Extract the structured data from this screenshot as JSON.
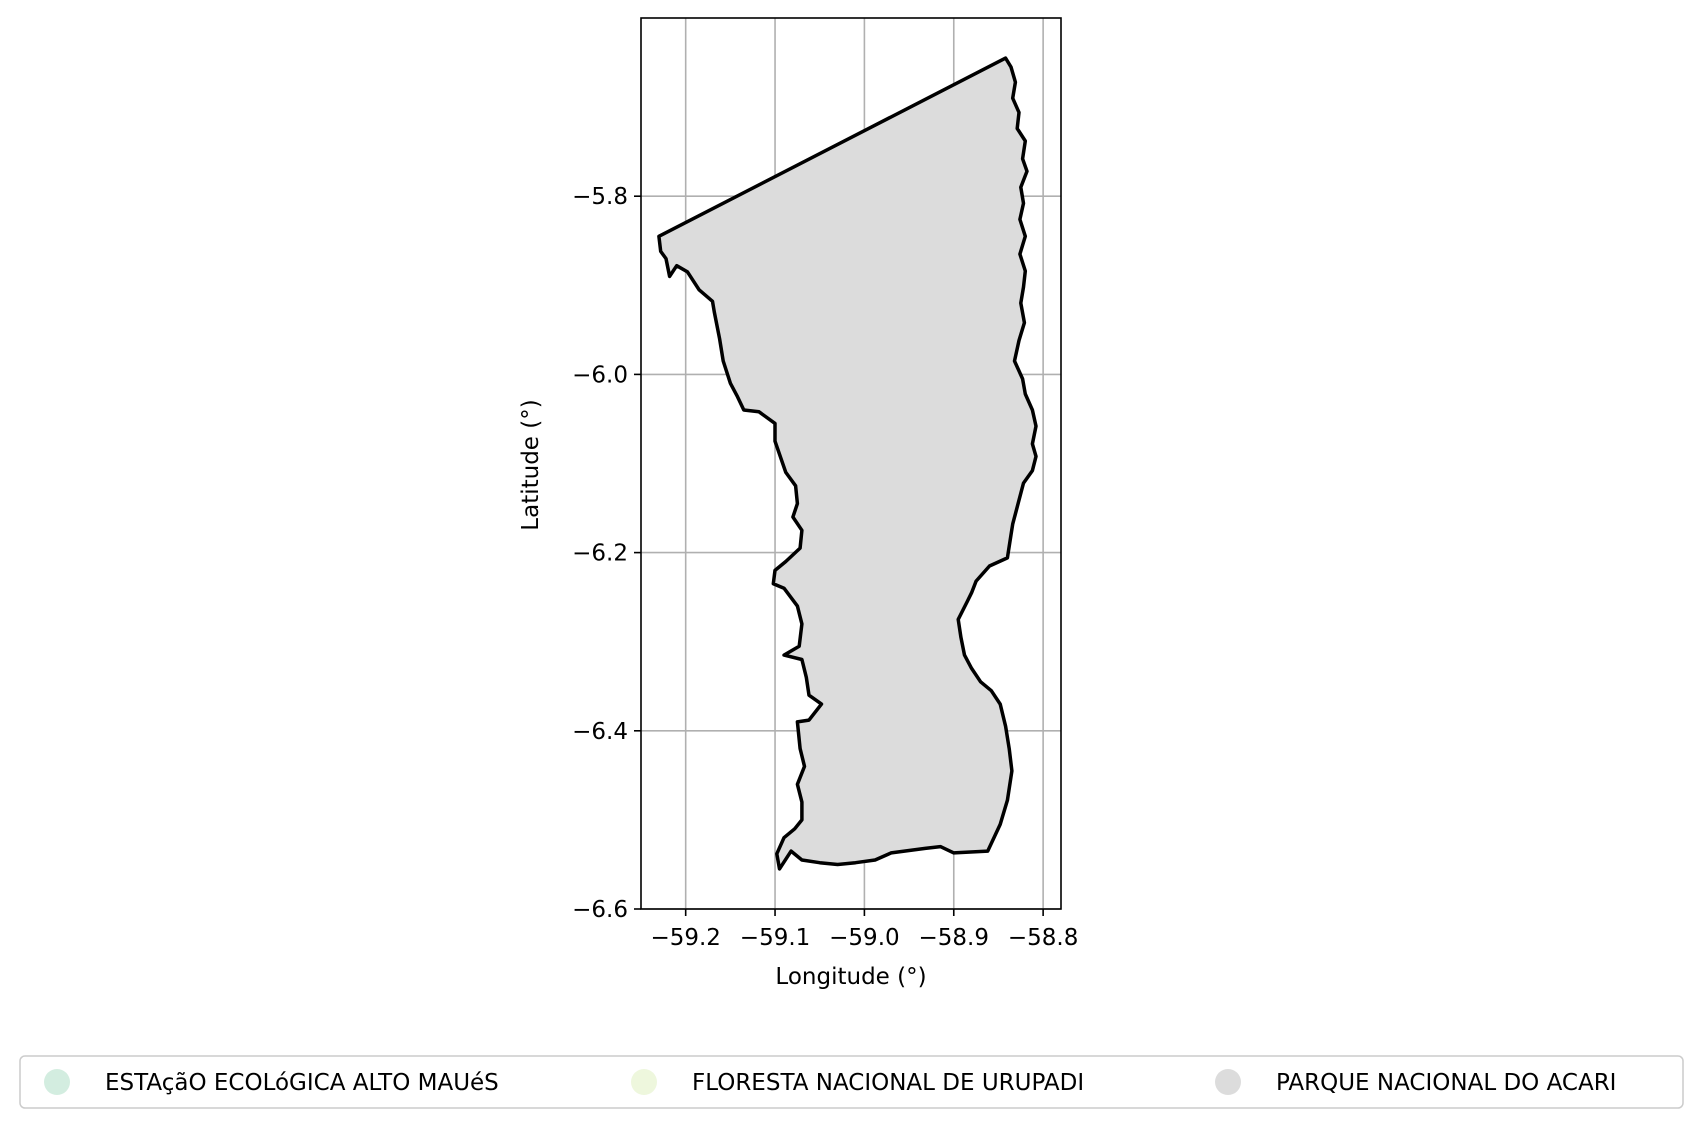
{
  "chart_data": {
    "type": "map",
    "xlabel": "Longitude (°)",
    "ylabel": "Latitude (°)",
    "xlim": [
      -59.25,
      -58.78
    ],
    "ylim": [
      -6.6,
      -5.6
    ],
    "xticks": [
      -59.2,
      -59.1,
      -59.0,
      -58.9,
      -58.8
    ],
    "xtick_labels": [
      "−59.2",
      "−59.1",
      "−59.0",
      "−58.9",
      "−58.8"
    ],
    "yticks": [
      -5.8,
      -6.0,
      -6.2,
      -6.4,
      -6.6
    ],
    "ytick_labels": [
      "−5.8",
      "−6.0",
      "−6.2",
      "−6.4",
      "−6.6"
    ],
    "grid": true,
    "legend_position": "bottom",
    "legend": [
      {
        "label": "ESTAçãO ECOLóGICA ALTO MAUéS",
        "color": "#d3ede0"
      },
      {
        "label": "FLORESTA NACIONAL DE URUPADI",
        "color": "#eef7dd"
      },
      {
        "label": "PARQUE NACIONAL DO ACARI",
        "color": "#dcdcdc"
      }
    ],
    "features": [
      {
        "name": "PARQUE NACIONAL DO ACARI",
        "fill": "#dcdcdc",
        "stroke": "#000000",
        "coordinates": [
          [
            -59.23,
            -5.845
          ],
          [
            -58.842,
            -5.645
          ],
          [
            -58.836,
            -5.655
          ],
          [
            -58.831,
            -5.672
          ],
          [
            -58.834,
            -5.69
          ],
          [
            -58.827,
            -5.706
          ],
          [
            -58.829,
            -5.724
          ],
          [
            -58.82,
            -5.738
          ],
          [
            -58.823,
            -5.758
          ],
          [
            -58.818,
            -5.772
          ],
          [
            -58.825,
            -5.79
          ],
          [
            -58.822,
            -5.808
          ],
          [
            -58.826,
            -5.826
          ],
          [
            -58.82,
            -5.845
          ],
          [
            -58.826,
            -5.865
          ],
          [
            -58.82,
            -5.884
          ],
          [
            -58.822,
            -5.902
          ],
          [
            -58.825,
            -5.92
          ],
          [
            -58.821,
            -5.942
          ],
          [
            -58.827,
            -5.962
          ],
          [
            -58.832,
            -5.985
          ],
          [
            -58.823,
            -6.005
          ],
          [
            -58.82,
            -6.022
          ],
          [
            -58.812,
            -6.04
          ],
          [
            -58.808,
            -6.058
          ],
          [
            -58.812,
            -6.078
          ],
          [
            -58.808,
            -6.092
          ],
          [
            -58.812,
            -6.108
          ],
          [
            -58.822,
            -6.122
          ],
          [
            -58.828,
            -6.145
          ],
          [
            -58.834,
            -6.168
          ],
          [
            -58.836,
            -6.18
          ],
          [
            -58.84,
            -6.206
          ],
          [
            -58.86,
            -6.215
          ],
          [
            -58.875,
            -6.232
          ],
          [
            -58.88,
            -6.245
          ],
          [
            -58.885,
            -6.255
          ],
          [
            -58.895,
            -6.275
          ],
          [
            -58.892,
            -6.295
          ],
          [
            -58.888,
            -6.315
          ],
          [
            -58.88,
            -6.33
          ],
          [
            -58.87,
            -6.345
          ],
          [
            -58.858,
            -6.355
          ],
          [
            -58.848,
            -6.37
          ],
          [
            -58.842,
            -6.395
          ],
          [
            -58.838,
            -6.42
          ],
          [
            -58.835,
            -6.445
          ],
          [
            -58.84,
            -6.478
          ],
          [
            -58.848,
            -6.505
          ],
          [
            -58.862,
            -6.535
          ],
          [
            -58.9,
            -6.537
          ],
          [
            -58.915,
            -6.53
          ],
          [
            -58.932,
            -6.532
          ],
          [
            -58.97,
            -6.537
          ],
          [
            -58.988,
            -6.545
          ],
          [
            -59.01,
            -6.548
          ],
          [
            -59.03,
            -6.55
          ],
          [
            -59.05,
            -6.548
          ],
          [
            -59.07,
            -6.545
          ],
          [
            -59.082,
            -6.535
          ],
          [
            -59.095,
            -6.555
          ],
          [
            -59.098,
            -6.538
          ],
          [
            -59.09,
            -6.52
          ],
          [
            -59.078,
            -6.51
          ],
          [
            -59.07,
            -6.5
          ],
          [
            -59.07,
            -6.48
          ],
          [
            -59.075,
            -6.46
          ],
          [
            -59.067,
            -6.44
          ],
          [
            -59.072,
            -6.42
          ],
          [
            -59.075,
            -6.39
          ],
          [
            -59.062,
            -6.388
          ],
          [
            -59.048,
            -6.37
          ],
          [
            -59.062,
            -6.36
          ],
          [
            -59.065,
            -6.34
          ],
          [
            -59.07,
            -6.32
          ],
          [
            -59.09,
            -6.315
          ],
          [
            -59.073,
            -6.305
          ],
          [
            -59.07,
            -6.28
          ],
          [
            -59.075,
            -6.26
          ],
          [
            -59.09,
            -6.24
          ],
          [
            -59.102,
            -6.235
          ],
          [
            -59.1,
            -6.22
          ],
          [
            -59.088,
            -6.21
          ],
          [
            -59.072,
            -6.195
          ],
          [
            -59.07,
            -6.175
          ],
          [
            -59.08,
            -6.16
          ],
          [
            -59.075,
            -6.145
          ],
          [
            -59.077,
            -6.125
          ],
          [
            -59.088,
            -6.11
          ],
          [
            -59.1,
            -6.075
          ],
          [
            -59.1,
            -6.055
          ],
          [
            -59.118,
            -6.042
          ],
          [
            -59.135,
            -6.04
          ],
          [
            -59.142,
            -6.025
          ],
          [
            -59.15,
            -6.01
          ],
          [
            -59.158,
            -5.985
          ],
          [
            -59.162,
            -5.96
          ],
          [
            -59.168,
            -5.93
          ],
          [
            -59.17,
            -5.918
          ],
          [
            -59.185,
            -5.905
          ],
          [
            -59.198,
            -5.885
          ],
          [
            -59.21,
            -5.878
          ],
          [
            -59.218,
            -5.89
          ],
          [
            -59.222,
            -5.87
          ],
          [
            -59.228,
            -5.862
          ],
          [
            -59.23,
            -5.845
          ]
        ]
      }
    ]
  }
}
